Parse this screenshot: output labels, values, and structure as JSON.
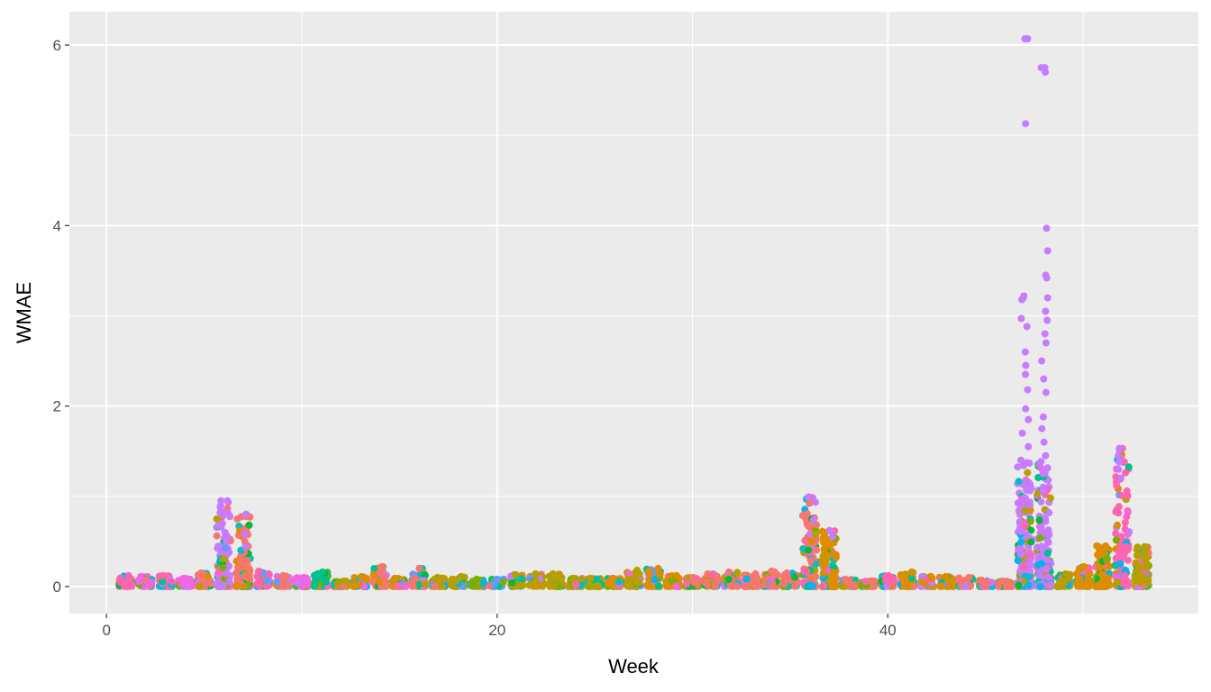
{
  "chart_data": {
    "type": "scatter",
    "title": "",
    "xlabel": "Week",
    "ylabel": "WMAE",
    "xlim": [
      -1.9,
      55.9
    ],
    "ylim": [
      -0.3,
      6.37
    ],
    "x_ticks": [
      0,
      20,
      40
    ],
    "y_ticks": [
      0,
      2,
      4,
      6
    ],
    "grid": true,
    "legend": "none",
    "background": "#ebebeb",
    "series_colors": [
      "#F8766D",
      "#DE8C00",
      "#B79F00",
      "#7CAE00",
      "#00BA38",
      "#00C08B",
      "#00BFC4",
      "#00B4F0",
      "#619CFF",
      "#C77CFF",
      "#F564E3",
      "#FF64B0"
    ],
    "weeks": [
      1,
      2,
      3,
      4,
      5,
      6,
      7,
      8,
      9,
      10,
      11,
      12,
      13,
      14,
      15,
      16,
      17,
      18,
      19,
      20,
      21,
      22,
      23,
      24,
      25,
      26,
      27,
      28,
      29,
      30,
      31,
      32,
      33,
      34,
      35,
      36,
      37,
      38,
      39,
      40,
      41,
      42,
      43,
      44,
      45,
      46,
      47,
      48,
      49,
      50,
      51,
      52,
      53
    ],
    "week_max": [
      0.12,
      0.11,
      0.12,
      0.09,
      0.15,
      0.95,
      0.8,
      0.17,
      0.12,
      0.1,
      0.16,
      0.06,
      0.11,
      0.22,
      0.09,
      0.2,
      0.1,
      0.11,
      0.08,
      0.08,
      0.13,
      0.14,
      0.14,
      0.09,
      0.09,
      0.09,
      0.18,
      0.2,
      0.12,
      0.1,
      0.14,
      0.16,
      0.14,
      0.17,
      0.15,
      0.99,
      0.62,
      0.08,
      0.06,
      0.12,
      0.16,
      0.11,
      0.11,
      0.1,
      0.07,
      0.06,
      6.07,
      5.75,
      0.14,
      0.22,
      0.45,
      1.53,
      0.44
    ],
    "week_dominant": [
      "#FF64B0",
      "#F564E3",
      "#FF64B0",
      "#F564E3",
      "#F8766D",
      "#C77CFF",
      "#F8766D",
      "#FF64B0",
      "#F8766D",
      "#F564E3",
      "#00C08B",
      "#B79F00",
      "#DE8C00",
      "#F8766D",
      "#DE8C00",
      "#F8766D",
      "#B79F00",
      "#B79F00",
      "#7CAE00",
      "#619CFF",
      "#B79F00",
      "#B79F00",
      "#B79F00",
      "#B79F00",
      "#B79F00",
      "#DE8C00",
      "#B79F00",
      "#DE8C00",
      "#DE8C00",
      "#F8766D",
      "#F8766D",
      "#F8766D",
      "#F8766D",
      "#F8766D",
      "#F8766D",
      "#F8766D",
      "#DE8C00",
      "#F8766D",
      "#F8766D",
      "#FF64B0",
      "#DE8C00",
      "#DE8C00",
      "#DE8C00",
      "#F8766D",
      "#F8766D",
      "#F8766D",
      "#C77CFF",
      "#C77CFF",
      "#B79F00",
      "#DE8C00",
      "#DE8C00",
      "#FF64B0",
      "#B79F00"
    ],
    "outliers": [
      {
        "x": 6,
        "y": 0.95
      },
      {
        "x": 6,
        "y": 0.88
      },
      {
        "x": 6,
        "y": 0.82
      },
      {
        "x": 6,
        "y": 0.7
      },
      {
        "x": 6,
        "y": 0.6
      },
      {
        "x": 6,
        "y": 0.5
      },
      {
        "x": 7,
        "y": 0.8
      },
      {
        "x": 7,
        "y": 0.58
      },
      {
        "x": 7,
        "y": 0.44
      },
      {
        "x": 36,
        "y": 0.99
      },
      {
        "x": 36,
        "y": 0.74
      },
      {
        "x": 37,
        "y": 0.62
      },
      {
        "x": 37,
        "y": 0.55
      },
      {
        "x": 47,
        "y": 6.07
      },
      {
        "x": 47,
        "y": 5.13
      },
      {
        "x": 47,
        "y": 3.22
      },
      {
        "x": 47,
        "y": 3.2
      },
      {
        "x": 47,
        "y": 3.18
      },
      {
        "x": 47,
        "y": 2.97
      },
      {
        "x": 47,
        "y": 2.88
      },
      {
        "x": 47,
        "y": 2.6
      },
      {
        "x": 47,
        "y": 2.45
      },
      {
        "x": 47,
        "y": 2.35
      },
      {
        "x": 47,
        "y": 2.18
      },
      {
        "x": 47,
        "y": 1.97
      },
      {
        "x": 47,
        "y": 1.85
      },
      {
        "x": 47,
        "y": 1.7
      },
      {
        "x": 47,
        "y": 1.55
      },
      {
        "x": 47,
        "y": 1.4
      },
      {
        "x": 48,
        "y": 5.75
      },
      {
        "x": 48,
        "y": 5.7
      },
      {
        "x": 48,
        "y": 3.97
      },
      {
        "x": 48,
        "y": 3.72
      },
      {
        "x": 48,
        "y": 3.45
      },
      {
        "x": 48,
        "y": 3.42
      },
      {
        "x": 48,
        "y": 3.2
      },
      {
        "x": 48,
        "y": 3.05
      },
      {
        "x": 48,
        "y": 2.95
      },
      {
        "x": 48,
        "y": 2.8
      },
      {
        "x": 48,
        "y": 2.7
      },
      {
        "x": 48,
        "y": 2.5
      },
      {
        "x": 48,
        "y": 2.3
      },
      {
        "x": 48,
        "y": 2.15
      },
      {
        "x": 48,
        "y": 1.88
      },
      {
        "x": 48,
        "y": 1.75
      },
      {
        "x": 48,
        "y": 1.6
      },
      {
        "x": 48,
        "y": 1.45
      },
      {
        "x": 48,
        "y": 1.25
      },
      {
        "x": 52,
        "y": 1.53
      },
      {
        "x": 52,
        "y": 1.45
      },
      {
        "x": 52,
        "y": 1.38
      },
      {
        "x": 52,
        "y": 1.3
      },
      {
        "x": 52,
        "y": 1.2
      }
    ]
  }
}
